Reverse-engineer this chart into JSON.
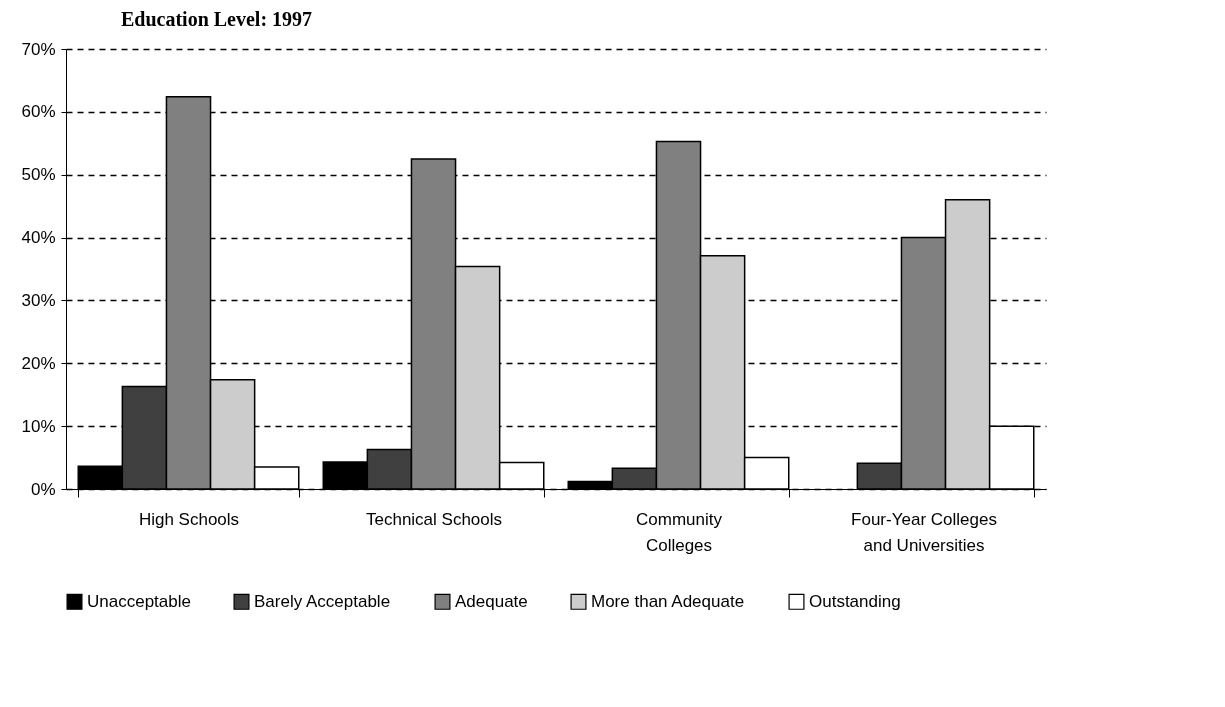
{
  "chart_data": {
    "type": "bar",
    "title": "Education Level: 1997",
    "categories": [
      "High Schools",
      "Technical Schools",
      "Community\nColleges",
      "Four-Year Colleges\nand Universities"
    ],
    "series": [
      {
        "name": "Unacceptable",
        "color": "#000000",
        "values": [
          3.6,
          4.3,
          1.2,
          null
        ]
      },
      {
        "name": "Barely Acceptable",
        "color": "#404040",
        "values": [
          16.3,
          6.3,
          3.3,
          4.1
        ]
      },
      {
        "name": "Adequate",
        "color": "#808080",
        "values": [
          62.4,
          52.5,
          55.3,
          40.0
        ]
      },
      {
        "name": "More than Adequate",
        "color": "#cccccc",
        "values": [
          17.4,
          35.4,
          37.1,
          46.0
        ]
      },
      {
        "name": "Outstanding",
        "color": "#ffffff",
        "values": [
          3.5,
          4.2,
          5.0,
          10.0
        ]
      }
    ],
    "ylim": [
      0,
      70
    ],
    "yticks": [
      {
        "value": 0,
        "label": "0%"
      },
      {
        "value": 10,
        "label": "10%"
      },
      {
        "value": 20,
        "label": "20%"
      },
      {
        "value": 30,
        "label": "30%"
      },
      {
        "value": 40,
        "label": "40%"
      },
      {
        "value": 50,
        "label": "50%"
      },
      {
        "value": 60,
        "label": "60%"
      },
      {
        "value": 70,
        "label": "70%"
      }
    ],
    "grid": "y",
    "line_style": "dashed",
    "legend": "bottom"
  }
}
